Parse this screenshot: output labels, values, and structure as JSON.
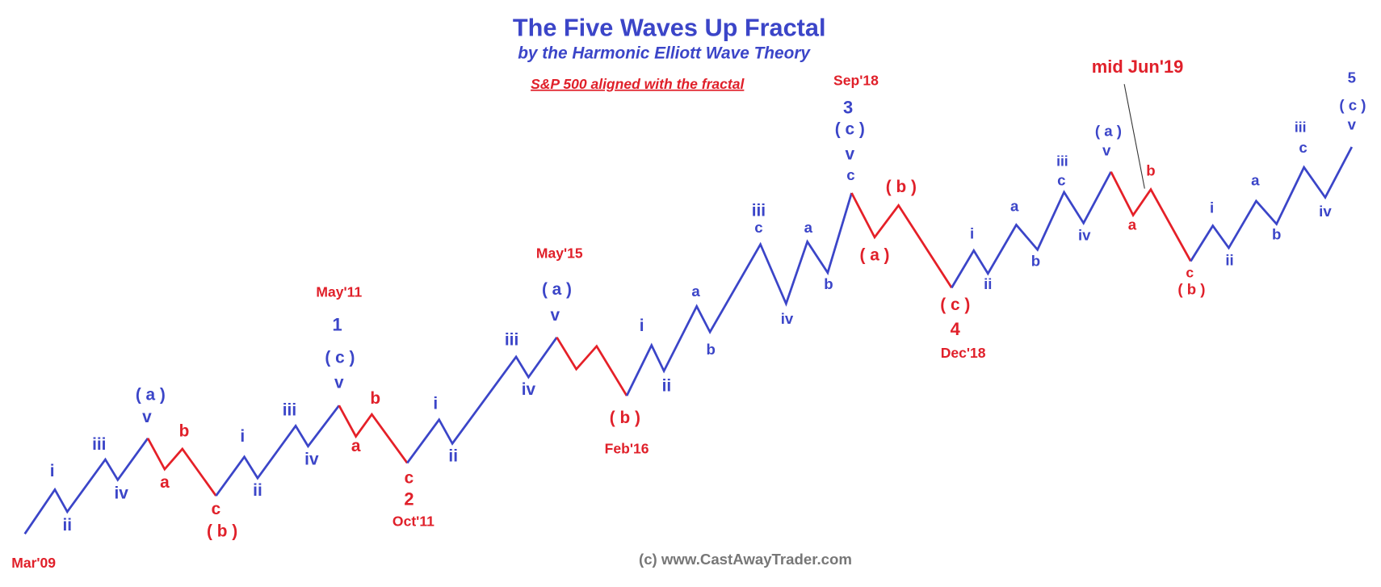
{
  "header": {
    "title": "The Five Waves Up Fractal",
    "subtitle": "by the Harmonic Elliott Wave Theory",
    "note": "S&P 500 aligned with the fractal"
  },
  "labels": [
    "Mar'09",
    "i",
    "ii",
    "iii",
    "iv",
    "( a )",
    "v",
    "a",
    "b",
    "c",
    "( b )",
    "i",
    "ii",
    "iii",
    "iv",
    "May'11",
    "1",
    "( c )",
    "v",
    "a",
    "b",
    "c",
    "2",
    "Oct'11",
    "i",
    "ii",
    "iii",
    "iv",
    "May'15",
    "( a )",
    "v",
    "( b )",
    "Feb'16",
    "i",
    "ii",
    "a",
    "b",
    "iii",
    "c",
    "iv",
    "a",
    "b",
    "Sep'18",
    "3",
    "( c )",
    "v",
    "c",
    "( a )",
    "( b )",
    "( c )",
    "4",
    "Dec'18",
    "i",
    "ii",
    "a",
    "b",
    "iii",
    "c",
    "iv",
    "( a )",
    "v",
    "mid Jun'19",
    "b",
    "a",
    "c",
    "( b )",
    "i",
    "ii",
    "a",
    "b",
    "iii",
    "c",
    "iv",
    "5",
    "( c )",
    "v"
  ],
  "credit": "(c) www.CastAwayTrader.com"
}
